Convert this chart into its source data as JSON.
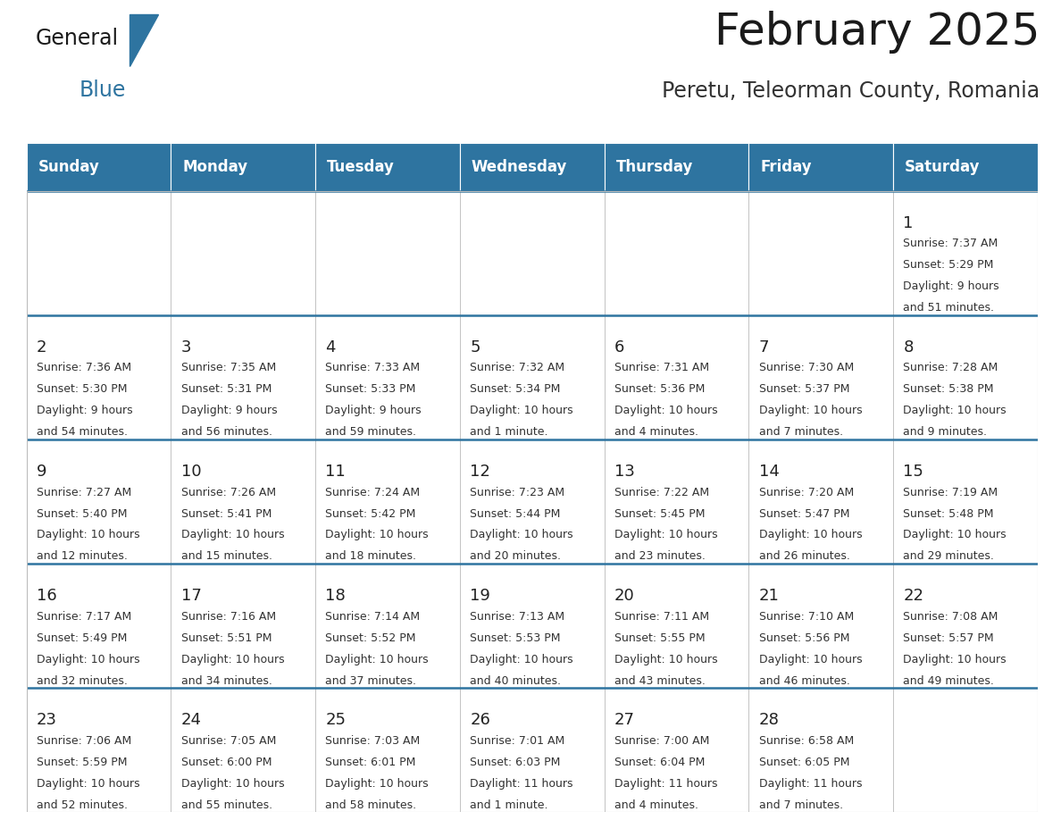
{
  "title": "February 2025",
  "subtitle": "Peretu, Teleorman County, Romania",
  "header_bg": "#2E74A0",
  "header_text": "#FFFFFF",
  "cell_border_color": "#2E74A0",
  "cell_line_color": "#BBBBBB",
  "day_names": [
    "Sunday",
    "Monday",
    "Tuesday",
    "Wednesday",
    "Thursday",
    "Friday",
    "Saturday"
  ],
  "days": [
    {
      "day": 1,
      "col": 6,
      "row": 0,
      "sunrise": "7:37 AM",
      "sunset": "5:29 PM",
      "daylight": "9 hours",
      "daylight2": "and 51 minutes."
    },
    {
      "day": 2,
      "col": 0,
      "row": 1,
      "sunrise": "7:36 AM",
      "sunset": "5:30 PM",
      "daylight": "9 hours",
      "daylight2": "and 54 minutes."
    },
    {
      "day": 3,
      "col": 1,
      "row": 1,
      "sunrise": "7:35 AM",
      "sunset": "5:31 PM",
      "daylight": "9 hours",
      "daylight2": "and 56 minutes."
    },
    {
      "day": 4,
      "col": 2,
      "row": 1,
      "sunrise": "7:33 AM",
      "sunset": "5:33 PM",
      "daylight": "9 hours",
      "daylight2": "and 59 minutes."
    },
    {
      "day": 5,
      "col": 3,
      "row": 1,
      "sunrise": "7:32 AM",
      "sunset": "5:34 PM",
      "daylight": "10 hours",
      "daylight2": "and 1 minute."
    },
    {
      "day": 6,
      "col": 4,
      "row": 1,
      "sunrise": "7:31 AM",
      "sunset": "5:36 PM",
      "daylight": "10 hours",
      "daylight2": "and 4 minutes."
    },
    {
      "day": 7,
      "col": 5,
      "row": 1,
      "sunrise": "7:30 AM",
      "sunset": "5:37 PM",
      "daylight": "10 hours",
      "daylight2": "and 7 minutes."
    },
    {
      "day": 8,
      "col": 6,
      "row": 1,
      "sunrise": "7:28 AM",
      "sunset": "5:38 PM",
      "daylight": "10 hours",
      "daylight2": "and 9 minutes."
    },
    {
      "day": 9,
      "col": 0,
      "row": 2,
      "sunrise": "7:27 AM",
      "sunset": "5:40 PM",
      "daylight": "10 hours",
      "daylight2": "and 12 minutes."
    },
    {
      "day": 10,
      "col": 1,
      "row": 2,
      "sunrise": "7:26 AM",
      "sunset": "5:41 PM",
      "daylight": "10 hours",
      "daylight2": "and 15 minutes."
    },
    {
      "day": 11,
      "col": 2,
      "row": 2,
      "sunrise": "7:24 AM",
      "sunset": "5:42 PM",
      "daylight": "10 hours",
      "daylight2": "and 18 minutes."
    },
    {
      "day": 12,
      "col": 3,
      "row": 2,
      "sunrise": "7:23 AM",
      "sunset": "5:44 PM",
      "daylight": "10 hours",
      "daylight2": "and 20 minutes."
    },
    {
      "day": 13,
      "col": 4,
      "row": 2,
      "sunrise": "7:22 AM",
      "sunset": "5:45 PM",
      "daylight": "10 hours",
      "daylight2": "and 23 minutes."
    },
    {
      "day": 14,
      "col": 5,
      "row": 2,
      "sunrise": "7:20 AM",
      "sunset": "5:47 PM",
      "daylight": "10 hours",
      "daylight2": "and 26 minutes."
    },
    {
      "day": 15,
      "col": 6,
      "row": 2,
      "sunrise": "7:19 AM",
      "sunset": "5:48 PM",
      "daylight": "10 hours",
      "daylight2": "and 29 minutes."
    },
    {
      "day": 16,
      "col": 0,
      "row": 3,
      "sunrise": "7:17 AM",
      "sunset": "5:49 PM",
      "daylight": "10 hours",
      "daylight2": "and 32 minutes."
    },
    {
      "day": 17,
      "col": 1,
      "row": 3,
      "sunrise": "7:16 AM",
      "sunset": "5:51 PM",
      "daylight": "10 hours",
      "daylight2": "and 34 minutes."
    },
    {
      "day": 18,
      "col": 2,
      "row": 3,
      "sunrise": "7:14 AM",
      "sunset": "5:52 PM",
      "daylight": "10 hours",
      "daylight2": "and 37 minutes."
    },
    {
      "day": 19,
      "col": 3,
      "row": 3,
      "sunrise": "7:13 AM",
      "sunset": "5:53 PM",
      "daylight": "10 hours",
      "daylight2": "and 40 minutes."
    },
    {
      "day": 20,
      "col": 4,
      "row": 3,
      "sunrise": "7:11 AM",
      "sunset": "5:55 PM",
      "daylight": "10 hours",
      "daylight2": "and 43 minutes."
    },
    {
      "day": 21,
      "col": 5,
      "row": 3,
      "sunrise": "7:10 AM",
      "sunset": "5:56 PM",
      "daylight": "10 hours",
      "daylight2": "and 46 minutes."
    },
    {
      "day": 22,
      "col": 6,
      "row": 3,
      "sunrise": "7:08 AM",
      "sunset": "5:57 PM",
      "daylight": "10 hours",
      "daylight2": "and 49 minutes."
    },
    {
      "day": 23,
      "col": 0,
      "row": 4,
      "sunrise": "7:06 AM",
      "sunset": "5:59 PM",
      "daylight": "10 hours",
      "daylight2": "and 52 minutes."
    },
    {
      "day": 24,
      "col": 1,
      "row": 4,
      "sunrise": "7:05 AM",
      "sunset": "6:00 PM",
      "daylight": "10 hours",
      "daylight2": "and 55 minutes."
    },
    {
      "day": 25,
      "col": 2,
      "row": 4,
      "sunrise": "7:03 AM",
      "sunset": "6:01 PM",
      "daylight": "10 hours",
      "daylight2": "and 58 minutes."
    },
    {
      "day": 26,
      "col": 3,
      "row": 4,
      "sunrise": "7:01 AM",
      "sunset": "6:03 PM",
      "daylight": "11 hours",
      "daylight2": "and 1 minute."
    },
    {
      "day": 27,
      "col": 4,
      "row": 4,
      "sunrise": "7:00 AM",
      "sunset": "6:04 PM",
      "daylight": "11 hours",
      "daylight2": "and 4 minutes."
    },
    {
      "day": 28,
      "col": 5,
      "row": 4,
      "sunrise": "6:58 AM",
      "sunset": "6:05 PM",
      "daylight": "11 hours",
      "daylight2": "and 7 minutes."
    }
  ],
  "num_rows": 5,
  "num_cols": 7,
  "title_fontsize": 36,
  "subtitle_fontsize": 17,
  "header_fontsize": 12,
  "day_num_fontsize": 13,
  "cell_text_fontsize": 9
}
